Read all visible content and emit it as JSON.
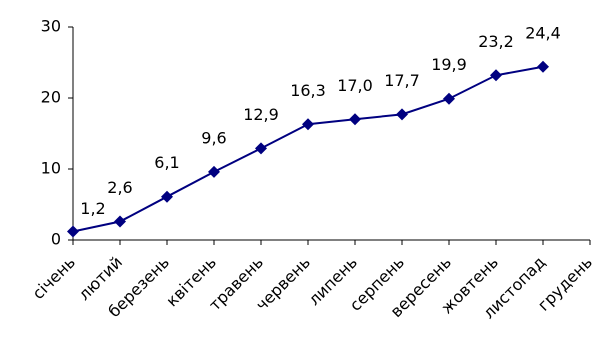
{
  "chart_data": {
    "type": "line",
    "categories": [
      "січень",
      "лютий",
      "березень",
      "квітень",
      "травень",
      "червень",
      "липень",
      "серпень",
      "вересень",
      "жовтень",
      "листопад",
      "грудень"
    ],
    "values": [
      1.2,
      2.6,
      6.1,
      9.6,
      12.9,
      16.3,
      17.0,
      17.7,
      19.9,
      23.2,
      24.4,
      null
    ],
    "value_labels": [
      "1,2",
      "2,6",
      "6,1",
      "9,6",
      "12,9",
      "16,3",
      "17,0",
      "17,7",
      "19,9",
      "23,2",
      "24,4",
      null
    ],
    "color": "#000080",
    "ylim": [
      0,
      30
    ],
    "yticks": [
      0,
      10,
      20,
      30
    ],
    "grid": false
  }
}
